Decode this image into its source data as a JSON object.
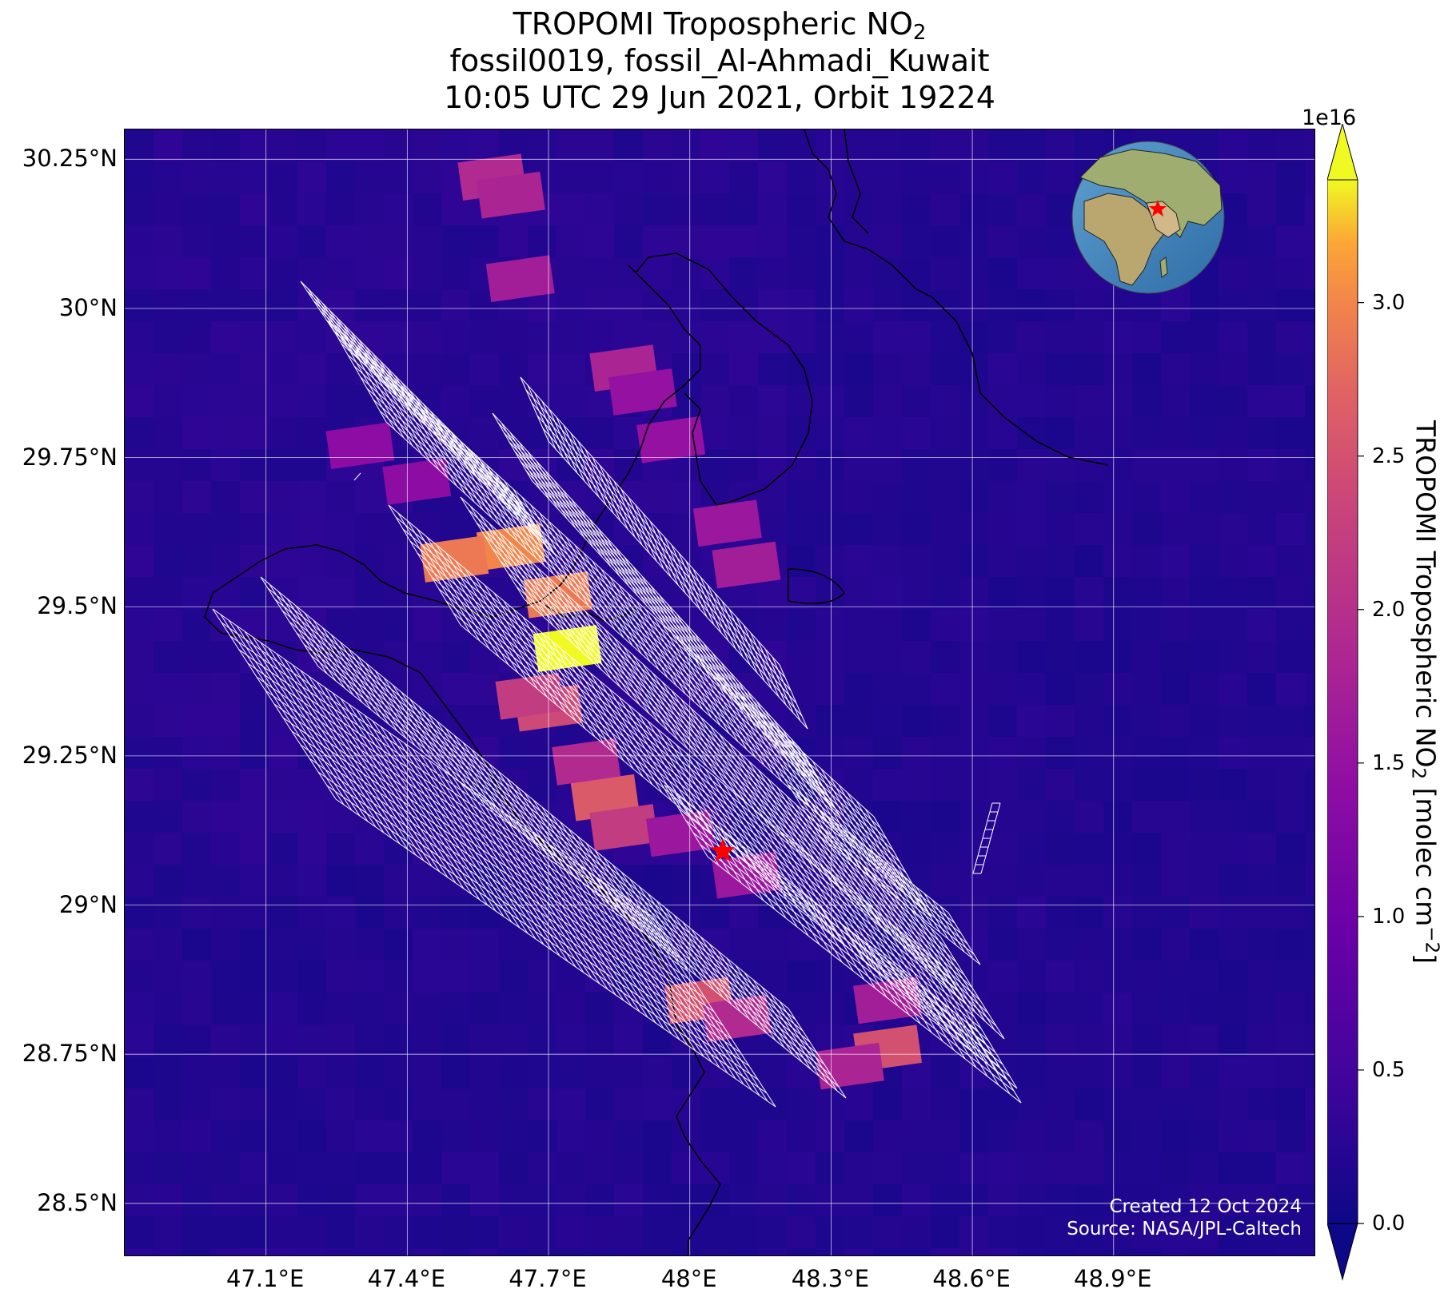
{
  "title": {
    "line1_main": "TROPOMI Tropospheric NO",
    "line1_sub": "2",
    "line2": "fossil0019, fossil_Al-Ahmadi_Kuwait",
    "line3": "10:05 UTC 29 Jun 2021, Orbit 19224"
  },
  "map": {
    "lon_range": [
      46.8,
      49.33
    ],
    "lat_range": [
      28.41,
      30.3
    ],
    "lon_ticks": [
      47.1,
      47.4,
      47.7,
      48.0,
      48.3,
      48.6,
      48.9
    ],
    "lat_ticks": [
      28.5,
      28.75,
      29.0,
      29.25,
      29.5,
      29.75,
      30.0,
      30.25
    ],
    "lon_tick_labels": [
      "47.1°E",
      "47.4°E",
      "47.7°E",
      "48°E",
      "48.3°E",
      "48.6°E",
      "48.9°E"
    ],
    "lat_tick_labels": [
      "28.5°N",
      "28.75°N",
      "29°N",
      "29.25°N",
      "29.5°N",
      "29.75°N",
      "30°N",
      "30.25°N"
    ],
    "grid": true,
    "source_marker": {
      "lon": 48.07,
      "lat": 29.09,
      "color": "#ff0000",
      "shape": "star"
    },
    "inset_globe": {
      "placement": "top-right",
      "marker_color": "#ff0000"
    },
    "background_color": "#3a10a0",
    "footprint_outline_color": "#ffffff",
    "coastline_color": "#000000"
  },
  "chart_data": {
    "type": "heatmap",
    "quantity": "TROPOMI Tropospheric NO2",
    "units": "molec cm-2",
    "scale_exponent": "1e16",
    "colormap": "plasma",
    "vmin": 0.0,
    "vmax": 3.4,
    "extend": "both",
    "colorbar_ticks": [
      0.0,
      0.5,
      1.0,
      1.5,
      2.0,
      2.5,
      3.0
    ],
    "colorbar_tick_labels": [
      "0.0",
      "0.5",
      "1.0",
      "1.5",
      "2.0",
      "2.5",
      "3.0"
    ],
    "plume_cells": [
      {
        "lon": 47.62,
        "lat": 29.6,
        "value": 3.0
      },
      {
        "lon": 47.5,
        "lat": 29.58,
        "value": 2.9
      },
      {
        "lon": 47.72,
        "lat": 29.52,
        "value": 2.9
      },
      {
        "lon": 47.74,
        "lat": 29.43,
        "value": 3.4
      },
      {
        "lon": 47.7,
        "lat": 29.33,
        "value": 2.4
      },
      {
        "lon": 47.66,
        "lat": 29.35,
        "value": 2.2
      },
      {
        "lon": 47.82,
        "lat": 29.18,
        "value": 2.6
      },
      {
        "lon": 47.86,
        "lat": 29.13,
        "value": 2.2
      },
      {
        "lon": 47.78,
        "lat": 29.24,
        "value": 1.9
      },
      {
        "lon": 48.02,
        "lat": 28.84,
        "value": 2.5
      },
      {
        "lon": 48.1,
        "lat": 28.81,
        "value": 1.9
      },
      {
        "lon": 48.42,
        "lat": 28.76,
        "value": 2.5
      },
      {
        "lon": 48.34,
        "lat": 28.73,
        "value": 1.8
      },
      {
        "lon": 48.42,
        "lat": 28.84,
        "value": 1.7
      },
      {
        "lon": 47.58,
        "lat": 30.22,
        "value": 1.9
      },
      {
        "lon": 47.62,
        "lat": 30.19,
        "value": 1.8
      },
      {
        "lon": 47.64,
        "lat": 30.05,
        "value": 1.7
      },
      {
        "lon": 47.86,
        "lat": 29.9,
        "value": 1.8
      },
      {
        "lon": 47.9,
        "lat": 29.86,
        "value": 1.5
      },
      {
        "lon": 47.96,
        "lat": 29.78,
        "value": 1.5
      },
      {
        "lon": 48.08,
        "lat": 29.64,
        "value": 1.6
      },
      {
        "lon": 48.12,
        "lat": 29.57,
        "value": 1.7
      },
      {
        "lon": 47.3,
        "lat": 29.77,
        "value": 1.4
      },
      {
        "lon": 47.42,
        "lat": 29.71,
        "value": 1.4
      },
      {
        "lon": 48.12,
        "lat": 29.05,
        "value": 1.6
      },
      {
        "lon": 47.98,
        "lat": 29.12,
        "value": 1.6
      }
    ]
  },
  "colorbar_label": {
    "main": "TROPOMI Tropospheric NO",
    "sub": "2",
    "units_open": " [molec cm",
    "units_sup": "−2",
    "units_close": "]"
  },
  "credits": {
    "created": "Created 12 Oct 2024",
    "source": "Source: NASA/JPL-Caltech"
  }
}
